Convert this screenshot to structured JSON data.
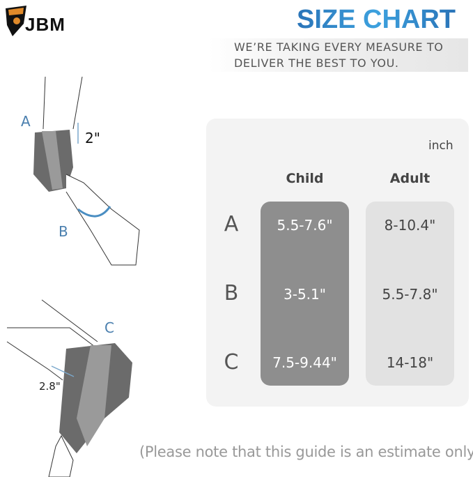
{
  "brand": {
    "logo_text": "JBM"
  },
  "header": {
    "title": "SIZE CHART",
    "tagline_line1": "WE’RE TAKING EVERY MEASURE TO",
    "tagline_line2": "DELIVER THE BEST TO YOU."
  },
  "illustration": {
    "label_a": "A",
    "label_b": "B",
    "label_c": "C",
    "width_elbow": "2\"",
    "width_knee": "2.8\""
  },
  "table": {
    "unit": "inch",
    "columns": [
      "Child",
      "Adult"
    ],
    "rows": [
      {
        "label": "A",
        "child": "5.5-7.6\"",
        "adult": "8-10.4\""
      },
      {
        "label": "B",
        "child": "3-5.1\"",
        "adult": "5.5-7.8\""
      },
      {
        "label": "C",
        "child": "7.5-9.44\"",
        "adult": "14-18\""
      }
    ]
  },
  "footer": {
    "note": "(Please note that this guide is an estimate only)"
  },
  "colors": {
    "title_blue": "#3596d6",
    "child_column": "#8e8e8e",
    "adult_column": "#e2e2e2",
    "card": "#f3f3f3",
    "measure_blue": "#4a8ec2"
  }
}
